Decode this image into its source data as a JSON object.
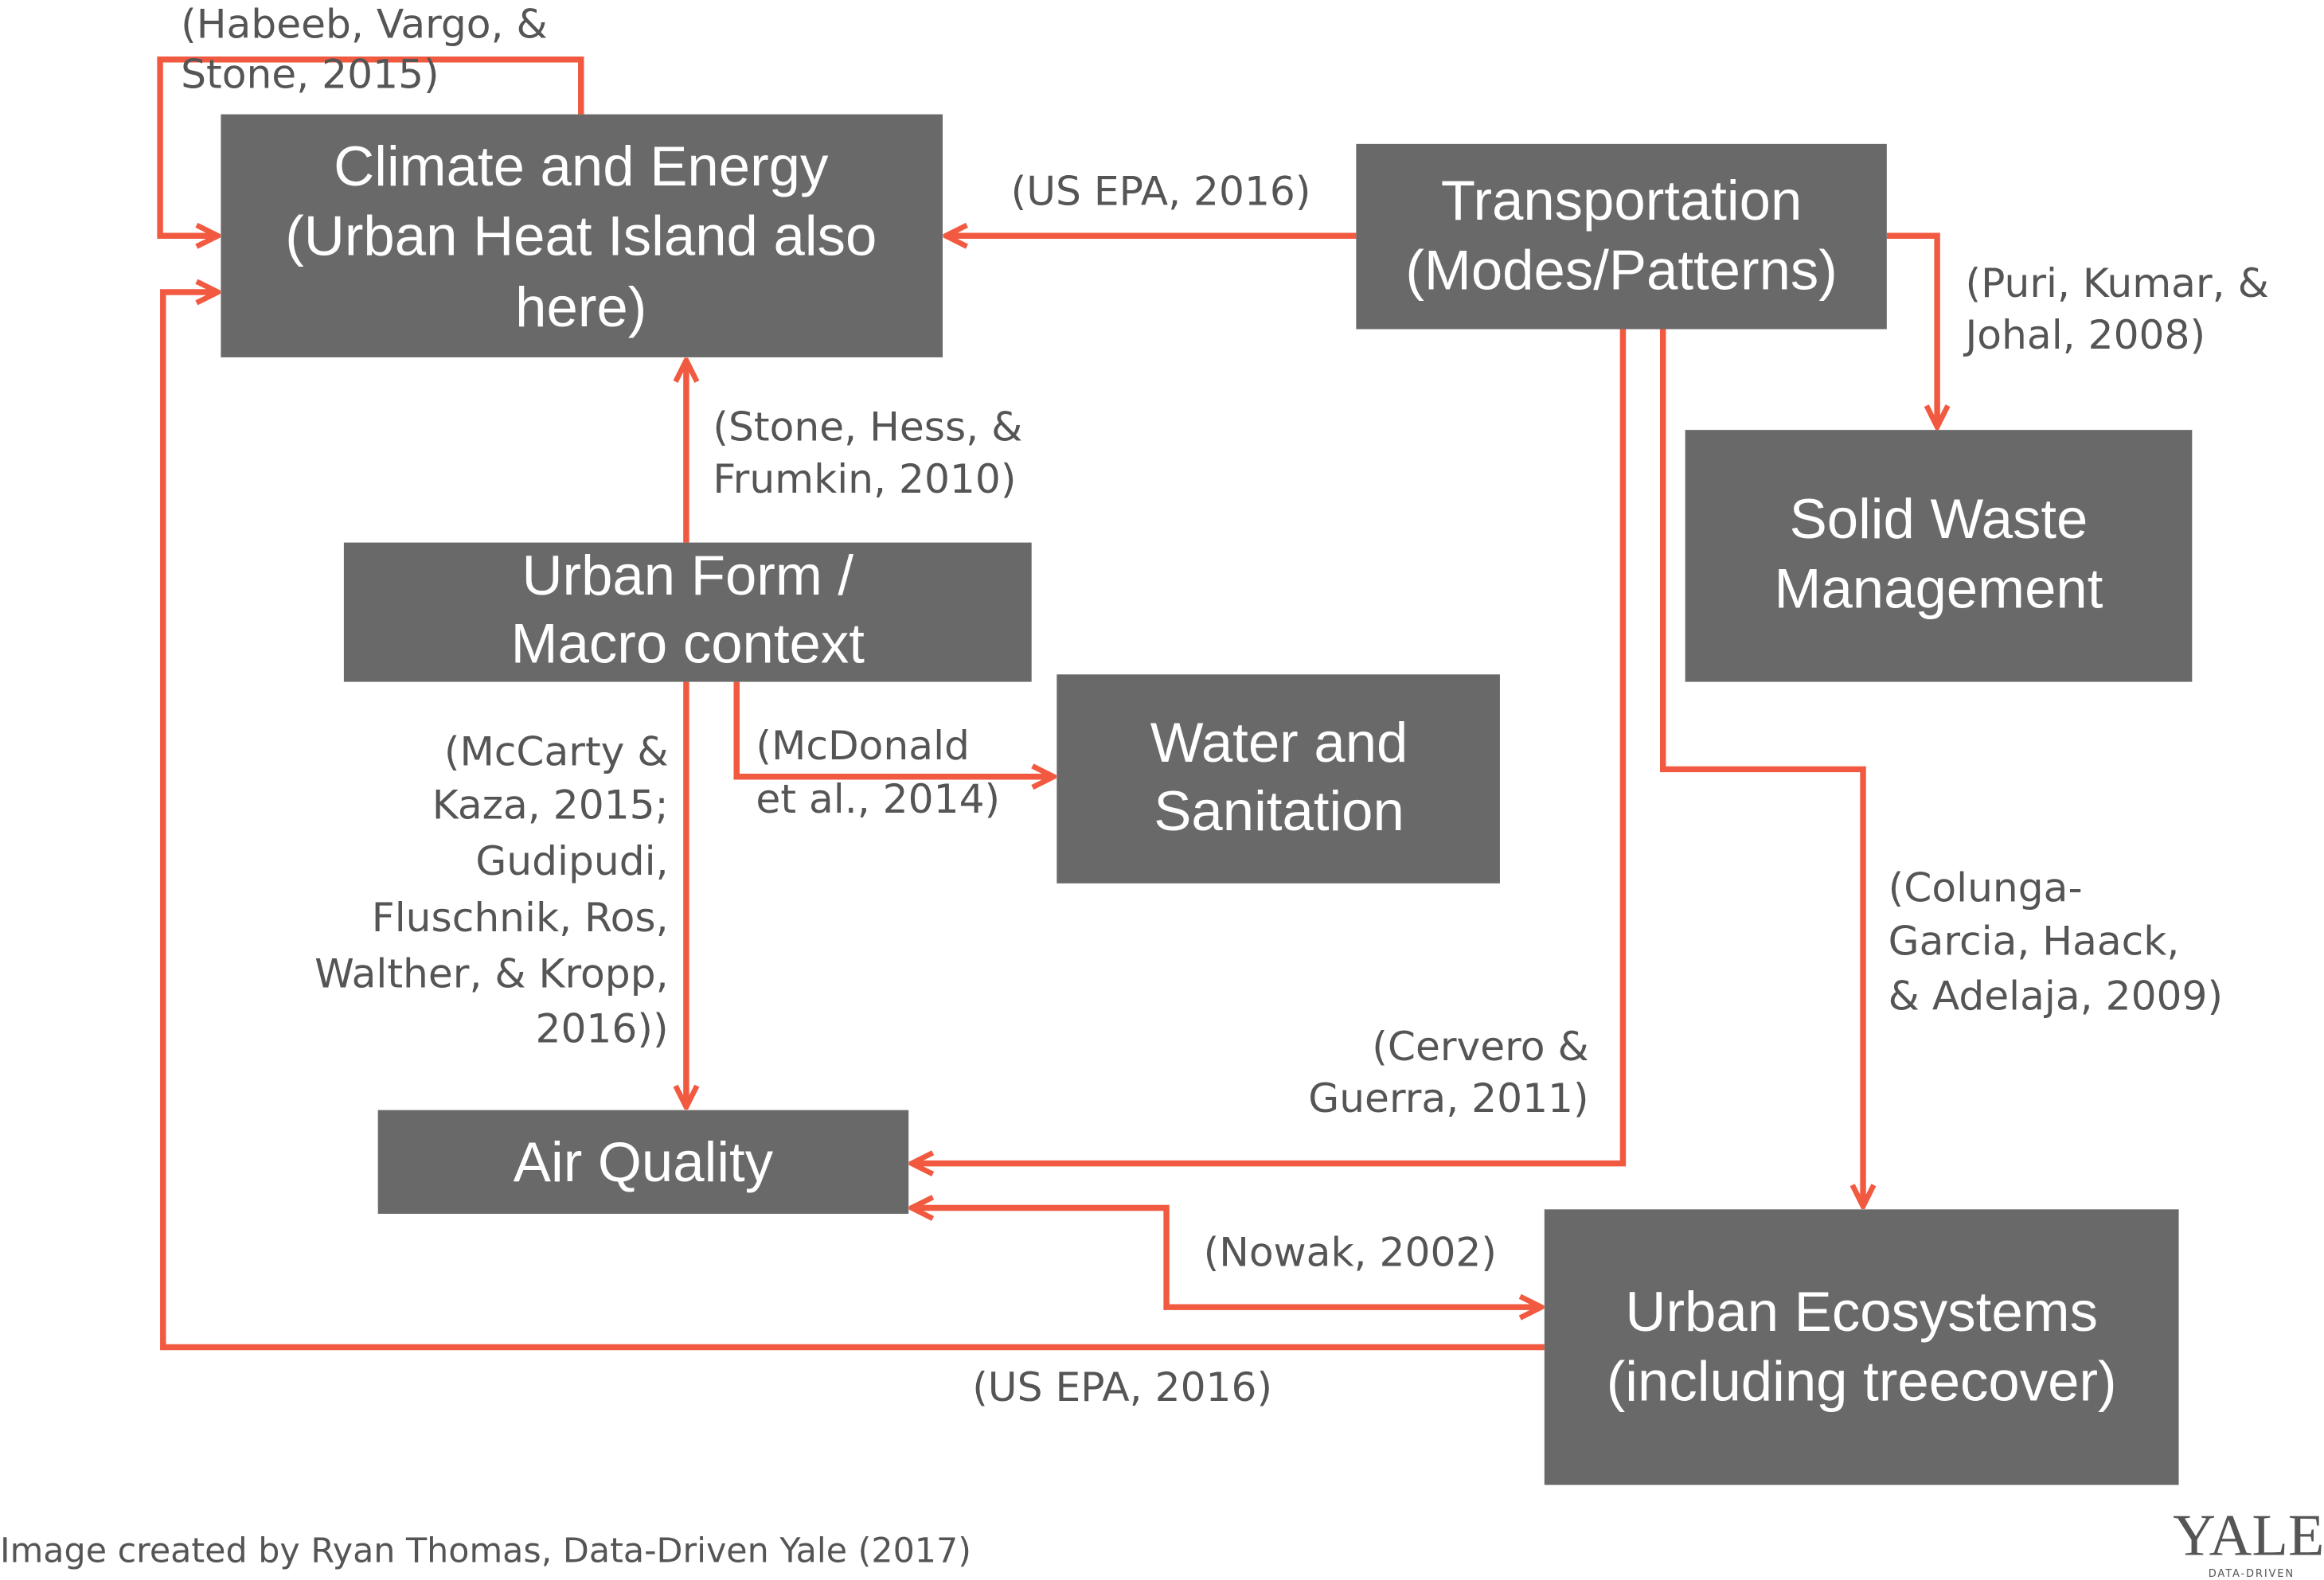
{
  "nodes": [
    {
      "lines": [
        "Climate and Energy",
        "(Urban Heat Island also",
        "here)"
      ]
    },
    {
      "lines": [
        "Transportation",
        "(Modes/Patterns)"
      ]
    },
    {
      "lines": [
        "Solid Waste",
        "Management"
      ]
    },
    {
      "lines": [
        "Urban Form /",
        "Macro context"
      ]
    },
    {
      "lines": [
        "Water and",
        "Sanitation"
      ]
    },
    {
      "lines": [
        "Air Quality"
      ]
    },
    {
      "lines": [
        "Urban Ecosystems",
        "(including treecover)"
      ]
    }
  ],
  "edges": [
    {
      "lines": [
        "(Habeeb, Vargo, &",
        "Stone, 2015)"
      ]
    },
    {
      "lines": [
        "(US EPA, 2016)"
      ]
    },
    {
      "lines": [
        "(Puri, Kumar, &",
        "Johal, 2008)"
      ]
    },
    {
      "lines": [
        "(Stone, Hess, &",
        "Frumkin, 2010)"
      ]
    },
    {
      "lines": [
        "(McDonald",
        "et al., 2014)"
      ]
    },
    {
      "lines": [
        "(McCarty &",
        "Kaza, 2015;",
        "Gudipudi,",
        "Fluschnik, Ros,",
        "Walther, & Kropp,",
        "2016))"
      ]
    },
    {
      "lines": [
        "(Cervero &",
        "Guerra, 2011)"
      ]
    },
    {
      "lines": [
        "(Colunga-",
        "Garcia, Haack,",
        "& Adelaja, 2009)"
      ]
    },
    {
      "lines": [
        "(Nowak, 2002)"
      ]
    },
    {
      "lines": [
        "(US EPA, 2016)"
      ]
    }
  ],
  "footer": "Image created by Ryan Thomas, Data-Driven Yale (2017)",
  "logo": {
    "name": "YALE",
    "tagline": "DATA-DRIVEN"
  }
}
